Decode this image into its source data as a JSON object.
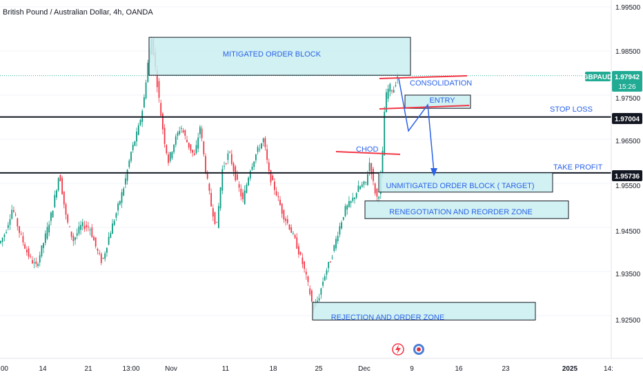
{
  "header": {
    "title": "British Pound / Australian Dollar, 4h, OANDA"
  },
  "colors": {
    "bull": "#089981",
    "bear": "#f23645",
    "zone_fill": "#c9eef1",
    "zone_stroke": "#131722",
    "annotation": "#2a62e8",
    "trendline": "#f23645",
    "level_line": "#131722",
    "price_tag_green": "#22ab94",
    "price_tag_dark": "#131722"
  },
  "price_axis": {
    "ticks": [
      "1.99500",
      "1.98500",
      "1.97500",
      "1.96500",
      "1.95500",
      "1.94500",
      "1.93500",
      "1.92500"
    ],
    "current": {
      "symbol": "GBPAUD",
      "price": "1.97942",
      "countdown": "15:26"
    },
    "stop_loss_label": "1.97004",
    "take_profit_label": "1.95736"
  },
  "time_axis": {
    "ticks": [
      ":00",
      "14",
      "21",
      "13:00",
      "Nov",
      "11",
      "18",
      "25",
      "Dec",
      "9",
      "16",
      "23",
      "2025",
      "14:"
    ]
  },
  "annotations": {
    "mitigated": "MITIGATED ORDER BLOCK",
    "consolidation": "CONSOLIDATION",
    "entry": "ENTRY",
    "stop_loss": "STOP LOSS",
    "chod": "CHOD",
    "take_profit": "TAKE PROFIT",
    "unmitigated": "UNMITIGATED ORDER BLOCK ( TARGET)",
    "renegotiation": "RENEGOTIATION AND REORDER ZONE",
    "rejection": "REJECTION AND ORDER ZONE"
  },
  "chart_data": {
    "type": "candlestick",
    "title": "British Pound / Australian Dollar, 4h, OANDA",
    "ylim": [
      1.92,
      2.0
    ],
    "levels": {
      "stop_loss": 1.97004,
      "take_profit": 1.95736,
      "current": 1.97942
    },
    "zones": [
      {
        "label": "MITIGATED ORDER BLOCK",
        "low": 1.9795,
        "high": 1.9881
      },
      {
        "label": "ENTRY",
        "low": 1.972,
        "high": 1.975
      },
      {
        "label": "UNMITIGATED ORDER BLOCK ( TARGET)",
        "low": 1.953,
        "high": 1.9574
      },
      {
        "label": "RENEGOTIATION AND REORDER ZONE",
        "low": 1.947,
        "high": 1.951
      },
      {
        "label": "REJECTION AND ORDER ZONE",
        "low": 1.924,
        "high": 1.928
      }
    ],
    "path": [
      [
        0,
        1.9415
      ],
      [
        8,
        1.944
      ],
      [
        18,
        1.9495
      ],
      [
        28,
        1.944
      ],
      [
        40,
        1.939
      ],
      [
        52,
        1.936
      ],
      [
        64,
        1.942
      ],
      [
        76,
        1.949
      ],
      [
        86,
        1.9575
      ],
      [
        96,
        1.947
      ],
      [
        106,
        1.942
      ],
      [
        118,
        1.9455
      ],
      [
        130,
        1.945
      ],
      [
        140,
        1.94
      ],
      [
        148,
        1.937
      ],
      [
        158,
        1.943
      ],
      [
        168,
        1.948
      ],
      [
        180,
        1.9545
      ],
      [
        190,
        1.962
      ],
      [
        200,
        1.967
      ],
      [
        208,
        1.973
      ],
      [
        214,
        1.982
      ],
      [
        220,
        1.988
      ],
      [
        226,
        1.98
      ],
      [
        232,
        1.972
      ],
      [
        238,
        1.965
      ],
      [
        244,
        1.96
      ],
      [
        252,
        1.964
      ],
      [
        262,
        1.968
      ],
      [
        272,
        1.964
      ],
      [
        282,
        1.961
      ],
      [
        290,
        1.968
      ],
      [
        298,
        1.958
      ],
      [
        306,
        1.95
      ],
      [
        314,
        1.945
      ],
      [
        322,
        1.958
      ],
      [
        332,
        1.962
      ],
      [
        342,
        1.956
      ],
      [
        352,
        1.951
      ],
      [
        362,
        1.958
      ],
      [
        372,
        1.962
      ],
      [
        382,
        1.965
      ],
      [
        390,
        1.957
      ],
      [
        400,
        1.953
      ],
      [
        410,
        1.948
      ],
      [
        420,
        1.945
      ],
      [
        430,
        1.941
      ],
      [
        440,
        1.936
      ],
      [
        448,
        1.931
      ],
      [
        454,
        1.9265
      ],
      [
        462,
        1.929
      ],
      [
        470,
        1.934
      ],
      [
        480,
        1.938
      ],
      [
        490,
        1.944
      ],
      [
        500,
        1.949
      ],
      [
        510,
        1.951
      ],
      [
        520,
        1.954
      ],
      [
        530,
        1.955
      ],
      [
        536,
        1.96
      ],
      [
        542,
        1.954
      ],
      [
        548,
        1.951
      ],
      [
        554,
        1.96
      ],
      [
        558,
        1.974
      ],
      [
        564,
        1.977
      ],
      [
        570,
        1.976
      ],
      [
        576,
        1.9794
      ]
    ]
  }
}
